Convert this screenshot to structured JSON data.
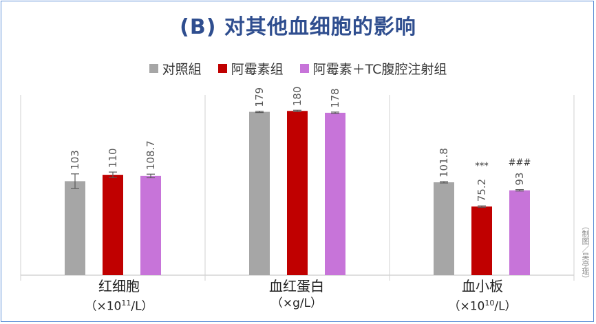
{
  "title": "(B) 对其他血细胞的影响",
  "credit": "（制图／吴亭瑶）",
  "chart_data": {
    "type": "bar",
    "title": "(B) 对其他血细胞的影响",
    "legend_position": "top",
    "grid": false,
    "series": [
      {
        "name": "对照組",
        "color": "#a6a6a6"
      },
      {
        "name": "阿霉素组",
        "color": "#c00000"
      },
      {
        "name": "阿霉素＋TC腹腔注射组",
        "color": "#c774d9"
      }
    ],
    "groups": [
      {
        "name": "红细胞",
        "unit_prefix": "（×10",
        "unit_sup": "11",
        "unit_suffix": "/L）",
        "ymax": 190,
        "values": [
          103,
          110,
          108.7
        ],
        "labels": [
          "103",
          "110",
          "108.7"
        ],
        "errors": [
          8,
          3,
          2
        ],
        "annotations": [
          "",
          "",
          ""
        ]
      },
      {
        "name": "血红蛋白",
        "unit_prefix": "（×g/L）",
        "unit_sup": "",
        "unit_suffix": "",
        "ymax": 190,
        "values": [
          179,
          180,
          178
        ],
        "labels": [
          "179",
          "180",
          "178"
        ],
        "errors": [
          0.5,
          0.5,
          0.5
        ],
        "annotations": [
          "",
          "",
          ""
        ]
      },
      {
        "name": "血小板",
        "unit_prefix": "（×10",
        "unit_sup": "10",
        "unit_suffix": "/L）",
        "ymax": 190,
        "values": [
          101.8,
          75.2,
          93
        ],
        "labels": [
          "101.8",
          "75.2",
          "93"
        ],
        "errors": [
          0.5,
          0.5,
          0.5
        ],
        "annotations": [
          "",
          "***",
          "###"
        ]
      }
    ]
  }
}
